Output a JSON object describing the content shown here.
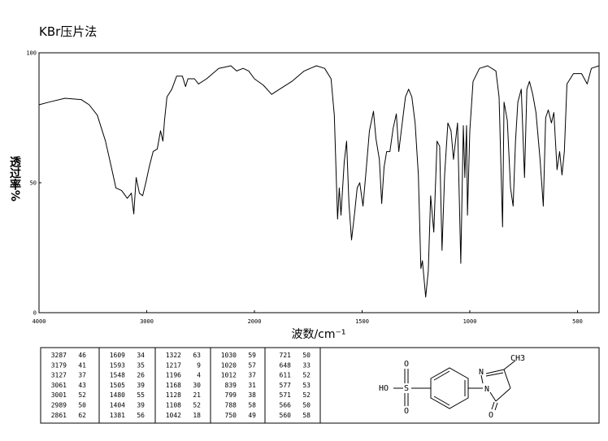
{
  "chart_data": {
    "type": "line",
    "title": "KBr压片法",
    "x_label": "波数/cm⁻¹",
    "y_label": "透过率%",
    "xlim": [
      4000,
      400
    ],
    "ylim": [
      0,
      100
    ],
    "x_scale_break": 2000,
    "x_scale_factor_below_break": 2,
    "xticks": [
      4000,
      3000,
      2000,
      1500,
      1000,
      500
    ],
    "yticks": [
      0,
      50,
      100
    ],
    "grid": false,
    "series": [
      {
        "color": "#000000",
        "x": [
          4000,
          3910,
          3759,
          3609,
          3534,
          3459,
          3383,
          3323,
          3286,
          3233,
          3180,
          3143,
          3120,
          3098,
          3068,
          3038,
          3008,
          2977,
          2940,
          2902,
          2872,
          2850,
          2835,
          2812,
          2767,
          2722,
          2669,
          2639,
          2617,
          2556,
          2519,
          2444,
          2331,
          2218,
          2165,
          2105,
          2053,
          2000,
          1958,
          1920,
          1883,
          1826,
          1769,
          1712,
          1674,
          1644,
          1629,
          1614,
          1606,
          1598,
          1583,
          1572,
          1561,
          1549,
          1534,
          1523,
          1511,
          1496,
          1481,
          1466,
          1447,
          1436,
          1420,
          1409,
          1398,
          1386,
          1371,
          1356,
          1341,
          1330,
          1318,
          1299,
          1284,
          1269,
          1254,
          1239,
          1227,
          1220,
          1205,
          1193,
          1182,
          1167,
          1152,
          1140,
          1129,
          1117,
          1102,
          1087,
          1076,
          1057,
          1042,
          1030,
          1023,
          1015,
          1011,
          1000,
          985,
          955,
          917,
          879,
          864,
          848,
          841,
          826,
          811,
          799,
          788,
          777,
          761,
          746,
          735,
          723,
          708,
          693,
          674,
          659,
          648,
          636,
          621,
          610,
          595,
          583,
          572,
          561,
          549,
          519,
          481,
          455,
          436,
          400
        ],
        "values": [
          80,
          81,
          82.5,
          82,
          80,
          76,
          66,
          55,
          48,
          47,
          44,
          46,
          38,
          52,
          46,
          45,
          50,
          56,
          62,
          63,
          70,
          66,
          74,
          83,
          86,
          91,
          91,
          87,
          90,
          90,
          88,
          90,
          94,
          95,
          93,
          94,
          93,
          90,
          87.5,
          84,
          86,
          89,
          93,
          95,
          94,
          90,
          76,
          36,
          48,
          37.5,
          58,
          66,
          42,
          28,
          39,
          48,
          50,
          41,
          55,
          70,
          77.5,
          67,
          59,
          42,
          56,
          62,
          62,
          71,
          76.5,
          62,
          70,
          83,
          86,
          83,
          73,
          53,
          17,
          20,
          6,
          16,
          45,
          31,
          66,
          64,
          24,
          53,
          73,
          70,
          59,
          73,
          19,
          72,
          52,
          72,
          37.5,
          70,
          89,
          94,
          95,
          93,
          83,
          33,
          81,
          74,
          48,
          41,
          66,
          81,
          86,
          52,
          86,
          89,
          84,
          77,
          59,
          41,
          75,
          78,
          73,
          77,
          55,
          62,
          53,
          62,
          88,
          92,
          92,
          88,
          94,
          95
        ]
      }
    ]
  },
  "peak_table": [
    [
      [
        "3287",
        "46"
      ],
      [
        "3179",
        "41"
      ],
      [
        "3127",
        "37"
      ],
      [
        "3061",
        "43"
      ],
      [
        "3001",
        "52"
      ],
      [
        "2989",
        "50"
      ],
      [
        "2861",
        "62"
      ]
    ],
    [
      [
        "1609",
        "34"
      ],
      [
        "1593",
        "35"
      ],
      [
        "1548",
        "26"
      ],
      [
        "1505",
        "39"
      ],
      [
        "1480",
        "55"
      ],
      [
        "1404",
        "39"
      ],
      [
        "1381",
        "56"
      ]
    ],
    [
      [
        "1322",
        "63"
      ],
      [
        "1217",
        "9"
      ],
      [
        "1196",
        "4"
      ],
      [
        "1168",
        "30"
      ],
      [
        "1128",
        "21"
      ],
      [
        "1108",
        "52"
      ],
      [
        "1042",
        "18"
      ]
    ],
    [
      [
        "1030",
        "59"
      ],
      [
        "1020",
        "57"
      ],
      [
        "1012",
        "37"
      ],
      [
        "839",
        "31"
      ],
      [
        "799",
        "38"
      ],
      [
        "788",
        "58"
      ],
      [
        "750",
        "49"
      ]
    ],
    [
      [
        "721",
        "50"
      ],
      [
        "648",
        "33"
      ],
      [
        "611",
        "52"
      ],
      [
        "577",
        "53"
      ],
      [
        "571",
        "52"
      ],
      [
        "566",
        "50"
      ],
      [
        "560",
        "58"
      ]
    ]
  ],
  "structure": {
    "atoms": [
      "O",
      "HO",
      "S",
      "O",
      "N",
      "N",
      "CH3",
      "O"
    ]
  }
}
